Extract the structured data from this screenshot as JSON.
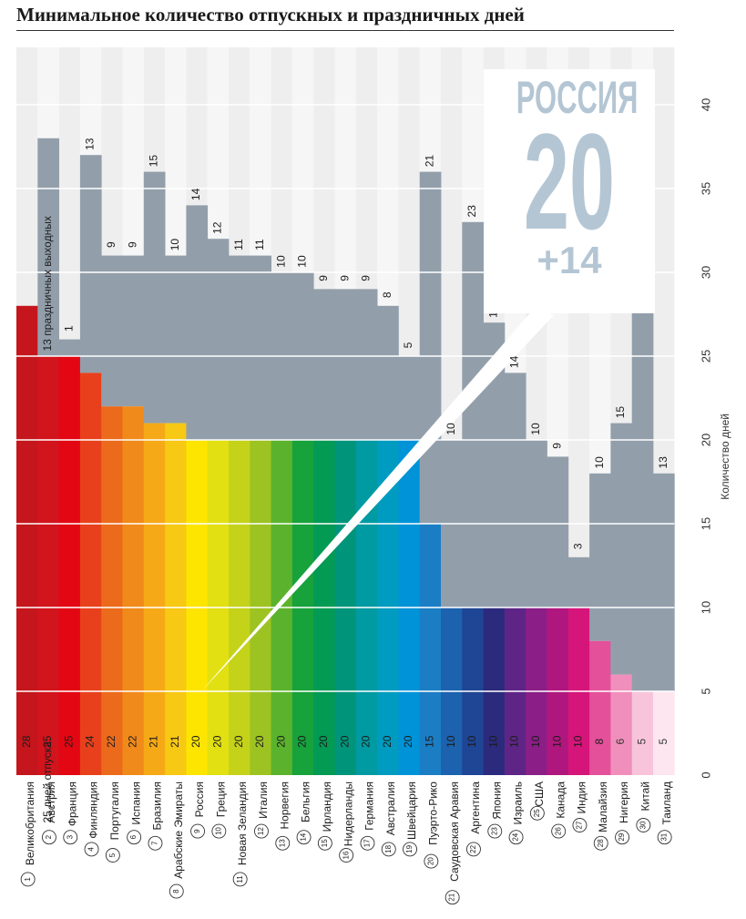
{
  "title": "Минимальное количество отпускных и праздничных дней",
  "callout": {
    "country": "РОССИЯ",
    "vacation": "20",
    "holidays": "+14"
  },
  "colors": {
    "holiday": "#929fab",
    "background_stripe_a": "#eeeeee",
    "background_stripe_b": "#f6f6f6"
  },
  "chart_data": {
    "type": "bar",
    "stacked": true,
    "ylabel": "Количество дней",
    "ylim": [
      0,
      40
    ],
    "yticks": [
      0,
      5,
      10,
      15,
      20,
      25,
      30,
      35,
      40
    ],
    "grid": true,
    "axis_position": "right",
    "series_labels": {
      "vacation": "25 дней отпуска",
      "holidays": "13 праздничных выходных"
    },
    "countries": [
      {
        "rank": "1",
        "name": "Великобритания",
        "vacation": 28,
        "holidays": 0,
        "color": "#c4161c"
      },
      {
        "rank": "2",
        "name": "Австрия",
        "vacation": 25,
        "holidays": 13,
        "color": "#d2141d"
      },
      {
        "rank": "3",
        "name": "Франция",
        "vacation": 25,
        "holidays": 1,
        "color": "#e30613"
      },
      {
        "rank": "4",
        "name": "Финляндия",
        "vacation": 24,
        "holidays": 13,
        "color": "#e8401c"
      },
      {
        "rank": "5",
        "name": "Португалия",
        "vacation": 22,
        "holidays": 9,
        "color": "#ec6a1b"
      },
      {
        "rank": "6",
        "name": "Испания",
        "vacation": 22,
        "holidays": 9,
        "color": "#f08a1a"
      },
      {
        "rank": "7",
        "name": "Бразилия",
        "vacation": 21,
        "holidays": 15,
        "color": "#f6a917"
      },
      {
        "rank": "8",
        "name": "Арабские Эмираты",
        "vacation": 21,
        "holidays": 10,
        "color": "#f7c814"
      },
      {
        "rank": "9",
        "name": "Россия",
        "vacation": 20,
        "holidays": 14,
        "color": "#fde500"
      },
      {
        "rank": "10",
        "name": "Греция",
        "vacation": 20,
        "holidays": 12,
        "color": "#e2e012"
      },
      {
        "rank": "11",
        "name": "Новая Зеландия",
        "vacation": 20,
        "holidays": 11,
        "color": "#c5d21a"
      },
      {
        "rank": "12",
        "name": "Италия",
        "vacation": 20,
        "holidays": 11,
        "color": "#9dc322"
      },
      {
        "rank": "13",
        "name": "Норвегия",
        "vacation": 20,
        "holidays": 10,
        "color": "#5bb32d"
      },
      {
        "rank": "14",
        "name": "Бельгия",
        "vacation": 20,
        "holidays": 10,
        "color": "#17a23c"
      },
      {
        "rank": "15",
        "name": "Ирландия",
        "vacation": 20,
        "holidays": 9,
        "color": "#039a53"
      },
      {
        "rank": "16",
        "name": "Нидерланды",
        "vacation": 20,
        "holidays": 9,
        "color": "#00957a"
      },
      {
        "rank": "17",
        "name": "Германия",
        "vacation": 20,
        "holidays": 9,
        "color": "#009aa2"
      },
      {
        "rank": "18",
        "name": "Австралия",
        "vacation": 20,
        "holidays": 8,
        "color": "#009bc0"
      },
      {
        "rank": "19",
        "name": "Швейцария",
        "vacation": 20,
        "holidays": 5,
        "color": "#0093d7"
      },
      {
        "rank": "20",
        "name": "Пуэрто-Рико",
        "vacation": 15,
        "holidays": 21,
        "color": "#1b7ec5"
      },
      {
        "rank": "21",
        "name": "Саудовская Аравия",
        "vacation": 10,
        "holidays": 10,
        "color": "#1d62ae"
      },
      {
        "rank": "22",
        "name": "Аргентина",
        "vacation": 10,
        "holidays": 23,
        "color": "#1f4595"
      },
      {
        "rank": "23",
        "name": "Япония",
        "vacation": 10,
        "holidays": 17,
        "color": "#2b2a7d"
      },
      {
        "rank": "24",
        "name": "Израиль",
        "vacation": 10,
        "holidays": 14,
        "color": "#5e2586"
      },
      {
        "rank": "25",
        "name": "США",
        "vacation": 10,
        "holidays": 10,
        "color": "#8b1f87"
      },
      {
        "rank": "26",
        "name": "Канада",
        "vacation": 10,
        "holidays": 9,
        "color": "#b0177e"
      },
      {
        "rank": "27",
        "name": "Индия",
        "vacation": 10,
        "holidays": 3,
        "color": "#d6157a"
      },
      {
        "rank": "28",
        "name": "Малайзия",
        "vacation": 8,
        "holidays": 10,
        "color": "#e4509a"
      },
      {
        "rank": "29",
        "name": "Нигерия",
        "vacation": 6,
        "holidays": 15,
        "color": "#f08fbb"
      },
      {
        "rank": "30",
        "name": "Китай",
        "vacation": 5,
        "holidays": 23,
        "color": "#f8c4db"
      },
      {
        "rank": "31",
        "name": "Таиланд",
        "vacation": 5,
        "holidays": 13,
        "color": "#fde6ef"
      }
    ]
  }
}
